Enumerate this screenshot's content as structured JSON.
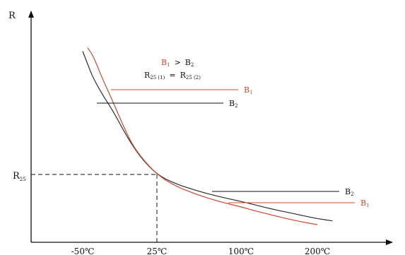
{
  "chart_data": {
    "type": "line",
    "title": "",
    "xlabel": "",
    "ylabel": "R",
    "x_ticks": [
      {
        "label": "-50℃",
        "value": -50
      },
      {
        "label": "25℃",
        "value": 25
      },
      {
        "label": "100℃",
        "value": 100
      },
      {
        "label": "200℃",
        "value": 200
      }
    ],
    "y_reference": {
      "label": "R25",
      "base": "R",
      "subscript": "25",
      "at_x": 25
    },
    "annotations": {
      "line1": {
        "b1": "B",
        "b1_sub": "1",
        "op": ">",
        "b2": "B",
        "b2_sub": "2"
      },
      "line2": {
        "r1": "R",
        "r1_sub": "25 (1)",
        "op": "=",
        "r2": "R",
        "r2_sub": "25 (2)"
      }
    },
    "series": [
      {
        "name": "B1",
        "label_base": "B",
        "label_sub": "1",
        "color": "#d5462a",
        "points": [
          [
            -45,
            9.8
          ],
          [
            -40,
            8.6
          ],
          [
            -35,
            7.0
          ],
          [
            -30,
            5.6
          ],
          [
            -20,
            3.8
          ],
          [
            -10,
            2.5
          ],
          [
            0,
            1.72
          ],
          [
            10,
            1.34
          ],
          [
            25,
            1.0
          ],
          [
            40,
            0.8
          ],
          [
            60,
            0.63
          ],
          [
            80,
            0.5
          ],
          [
            100,
            0.4
          ],
          [
            120,
            0.32
          ],
          [
            140,
            0.25
          ],
          [
            160,
            0.18
          ],
          [
            180,
            0.12
          ],
          [
            200,
            0.07
          ]
        ]
      },
      {
        "name": "B2",
        "label_base": "B",
        "label_sub": "2",
        "color": "#2b2b2b",
        "points": [
          [
            -50,
            9.2
          ],
          [
            -45,
            7.3
          ],
          [
            -40,
            5.8
          ],
          [
            -30,
            4.2
          ],
          [
            -20,
            3.2
          ],
          [
            -10,
            2.3
          ],
          [
            0,
            1.7
          ],
          [
            10,
            1.32
          ],
          [
            25,
            1.0
          ],
          [
            40,
            0.84
          ],
          [
            60,
            0.7
          ],
          [
            80,
            0.59
          ],
          [
            100,
            0.5
          ],
          [
            120,
            0.43
          ],
          [
            140,
            0.36
          ],
          [
            160,
            0.3
          ],
          [
            180,
            0.24
          ],
          [
            200,
            0.18
          ],
          [
            220,
            0.14
          ]
        ]
      }
    ],
    "colors": {
      "b1": "#d5462a",
      "b2": "#2b2b2b",
      "axis": "#111111",
      "reference": "#111111"
    }
  }
}
